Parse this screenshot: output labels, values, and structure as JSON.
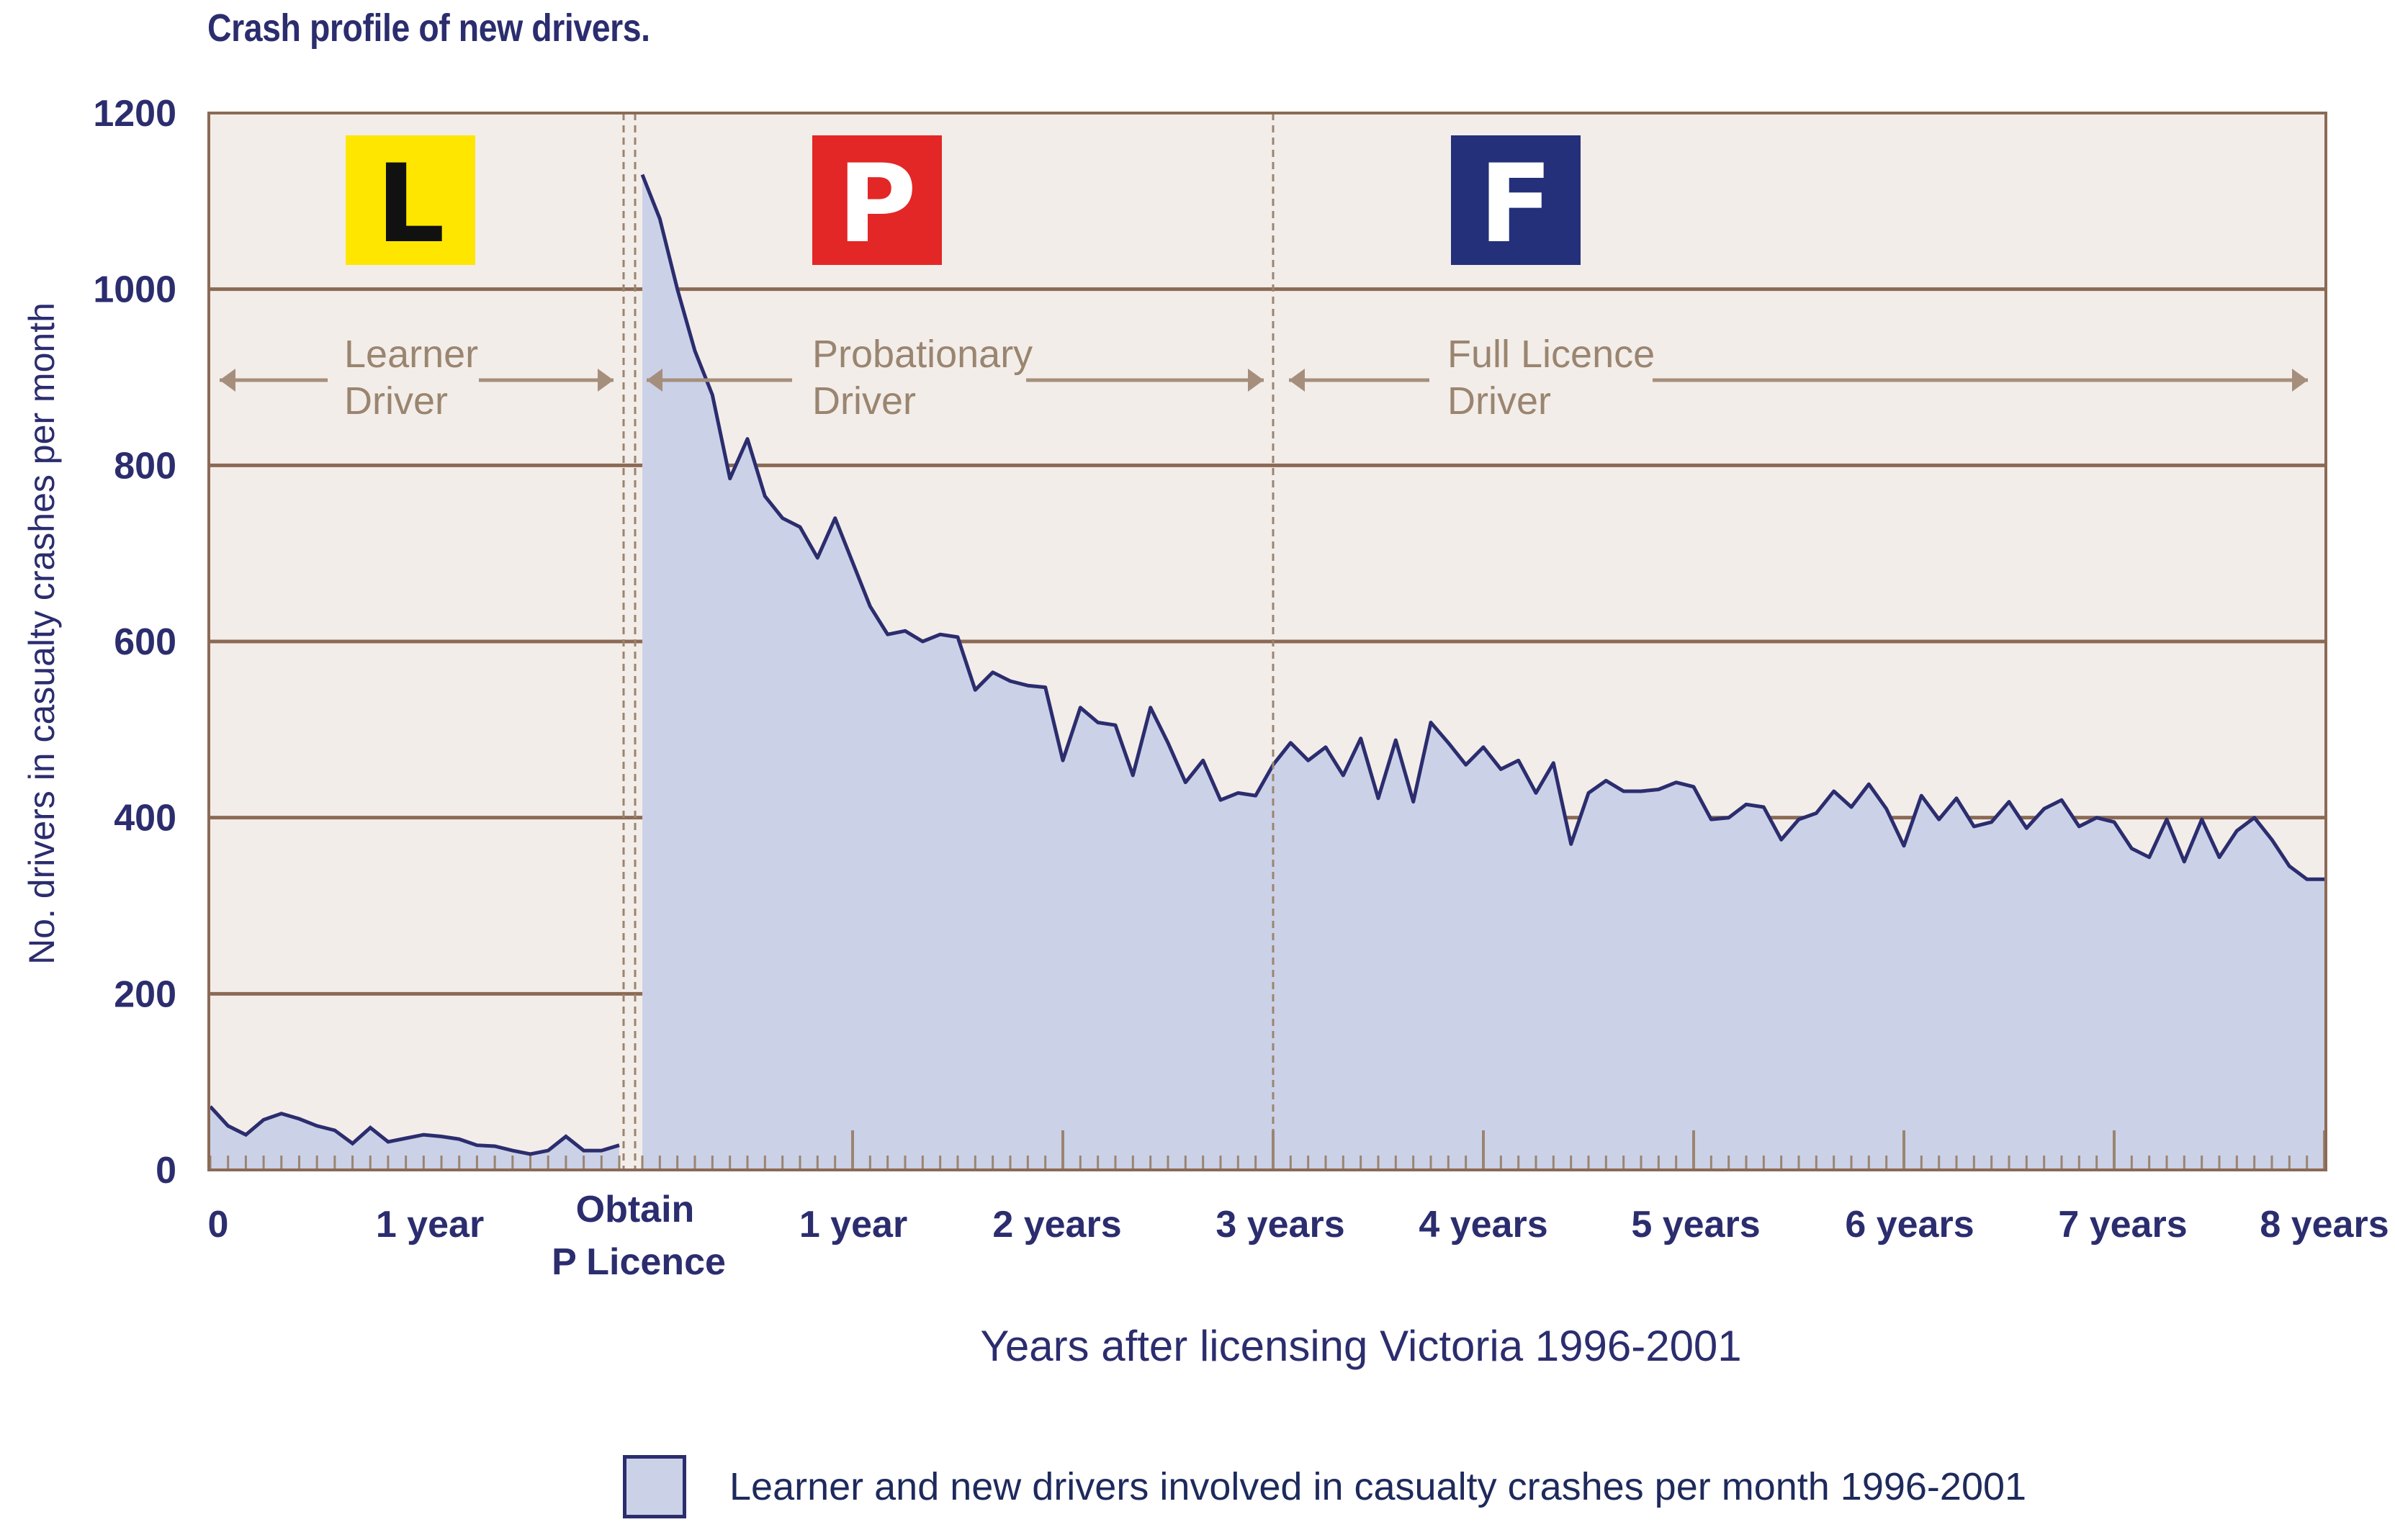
{
  "title": "Crash profile of new drivers.",
  "chart_data": {
    "type": "area",
    "ylabel": "No. drivers in casualty crashes per month",
    "xlabel": "Years after licensing Victoria 1996-2001",
    "ylim": [
      0,
      1200
    ],
    "yticks": [
      "0",
      "200",
      "400",
      "600",
      "800",
      "1000",
      "1200"
    ],
    "grid": true,
    "legend_position": "bottom",
    "colors": {
      "fill": "#cbd1e7",
      "line": "#2b2d6e",
      "plot_bg": "#f3ede9",
      "grid": "#8b6a55",
      "badge_L": "#ffe600",
      "badge_P": "#e32726",
      "badge_F": "#25307a"
    },
    "xtick_labels": {
      "learner": [
        "0",
        "1 year"
      ],
      "obtain": [
        "Obtain",
        "P Licence"
      ],
      "licensed": [
        "1 year",
        "2 years",
        "3 years",
        "4 years",
        "5 years",
        "6 years",
        "7 years",
        "8 years"
      ]
    },
    "phases": [
      {
        "badge": "L",
        "label_line1": "Learner",
        "label_line2": "Driver"
      },
      {
        "badge": "P",
        "label_line1": "Probationary",
        "label_line2": "Driver"
      },
      {
        "badge": "F",
        "label_line1": "Full Licence",
        "label_line2": "Driver"
      }
    ],
    "series": [
      {
        "name": "Learner and new drivers involved in casualty crashes per month 1996-2001",
        "learner_period": [
          72,
          50,
          40,
          57,
          64,
          58,
          50,
          45,
          30,
          48,
          32,
          36,
          40,
          38,
          35,
          28,
          27,
          22,
          18,
          22,
          38,
          22,
          22,
          28
        ],
        "licensed_months": [
          0,
          1,
          2,
          3,
          4,
          5,
          6,
          7,
          8,
          9,
          10,
          11,
          12,
          13,
          14,
          15,
          16,
          17,
          18,
          19,
          20,
          21,
          22,
          23,
          24,
          25,
          26,
          27,
          28,
          29,
          30,
          31,
          32,
          33,
          34,
          35,
          36,
          37,
          38,
          39,
          40,
          41,
          42,
          43,
          44,
          45,
          46,
          47,
          48,
          49,
          50,
          51,
          52,
          53,
          54,
          55,
          56,
          57,
          58,
          59,
          60,
          61,
          62,
          63,
          64,
          65,
          66,
          67,
          68,
          69,
          70,
          71,
          72,
          73,
          74,
          75,
          76,
          77,
          78,
          79,
          80,
          81,
          82,
          83,
          84,
          85,
          86,
          87,
          88,
          89,
          90,
          91,
          92,
          93,
          94,
          95,
          96
        ],
        "licensed_values": [
          1130,
          1080,
          1000,
          930,
          880,
          785,
          830,
          765,
          740,
          730,
          695,
          740,
          690,
          640,
          608,
          612,
          600,
          608,
          605,
          545,
          565,
          555,
          550,
          548,
          465,
          525,
          508,
          505,
          448,
          525,
          485,
          440,
          465,
          420,
          428,
          425,
          460,
          485,
          465,
          480,
          448,
          490,
          422,
          488,
          418,
          508,
          485,
          460,
          480,
          455,
          465,
          428,
          462,
          370,
          428,
          442,
          430,
          430,
          432,
          440,
          435,
          398,
          400,
          415,
          412,
          375,
          398,
          405,
          430,
          412,
          438,
          410,
          368,
          425,
          398,
          422,
          390,
          395,
          418,
          388,
          410,
          420,
          390,
          400,
          395,
          365,
          355,
          398,
          350,
          398,
          355,
          385,
          400,
          375,
          345,
          330,
          330
        ]
      }
    ]
  }
}
